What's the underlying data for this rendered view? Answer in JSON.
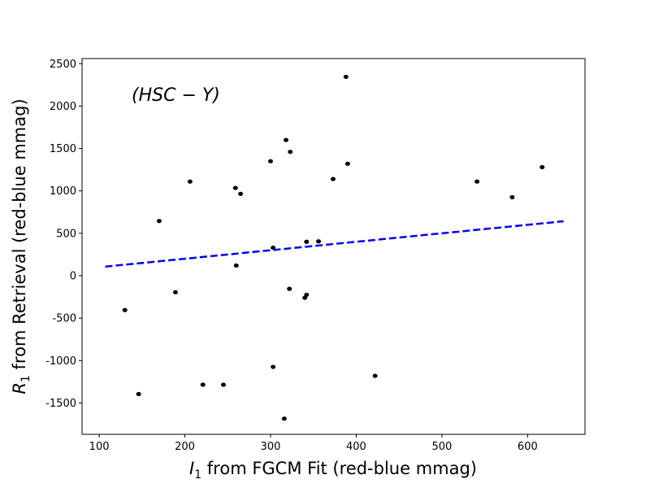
{
  "chart_data": {
    "type": "scatter",
    "title": "",
    "xlabel_main": "I",
    "xlabel_sub": "1",
    "xlabel_rest": " from FGCM Fit (red-blue mmag)",
    "ylabel_main": "R",
    "ylabel_sub": "1",
    "ylabel_rest": " from Retrieval (red-blue mmag)",
    "annotation": "(HSC − Y)",
    "xlim": [
      80,
      667
    ],
    "ylim": [
      -1870,
      2560
    ],
    "xticks": [
      100,
      200,
      300,
      400,
      500,
      600
    ],
    "yticks": [
      -1500,
      -1000,
      -500,
      0,
      500,
      1000,
      1500,
      2000,
      2500
    ],
    "grid": false,
    "points": [
      {
        "x": 130,
        "y": -405
      },
      {
        "x": 146,
        "y": -1395
      },
      {
        "x": 170,
        "y": 645
      },
      {
        "x": 189,
        "y": -195
      },
      {
        "x": 206,
        "y": 1110
      },
      {
        "x": 221,
        "y": -1285
      },
      {
        "x": 245,
        "y": -1285
      },
      {
        "x": 259,
        "y": 1035
      },
      {
        "x": 260,
        "y": 120
      },
      {
        "x": 265,
        "y": 965
      },
      {
        "x": 300,
        "y": 1350
      },
      {
        "x": 303,
        "y": 330
      },
      {
        "x": 303,
        "y": -1075
      },
      {
        "x": 316,
        "y": -1685
      },
      {
        "x": 318,
        "y": 1600
      },
      {
        "x": 322,
        "y": -155
      },
      {
        "x": 323,
        "y": 1460
      },
      {
        "x": 340,
        "y": -260
      },
      {
        "x": 342,
        "y": 400
      },
      {
        "x": 342,
        "y": -225
      },
      {
        "x": 356,
        "y": 405
      },
      {
        "x": 373,
        "y": 1140
      },
      {
        "x": 388,
        "y": 2345
      },
      {
        "x": 390,
        "y": 1320
      },
      {
        "x": 422,
        "y": -1180
      },
      {
        "x": 541,
        "y": 1110
      },
      {
        "x": 582,
        "y": 925
      },
      {
        "x": 617,
        "y": 1280
      }
    ],
    "fit_line": {
      "x": [
        107,
        642
      ],
      "y": [
        107,
        642
      ],
      "color": "#0000ff",
      "style": "dashed"
    },
    "marker_color": "#000000"
  }
}
